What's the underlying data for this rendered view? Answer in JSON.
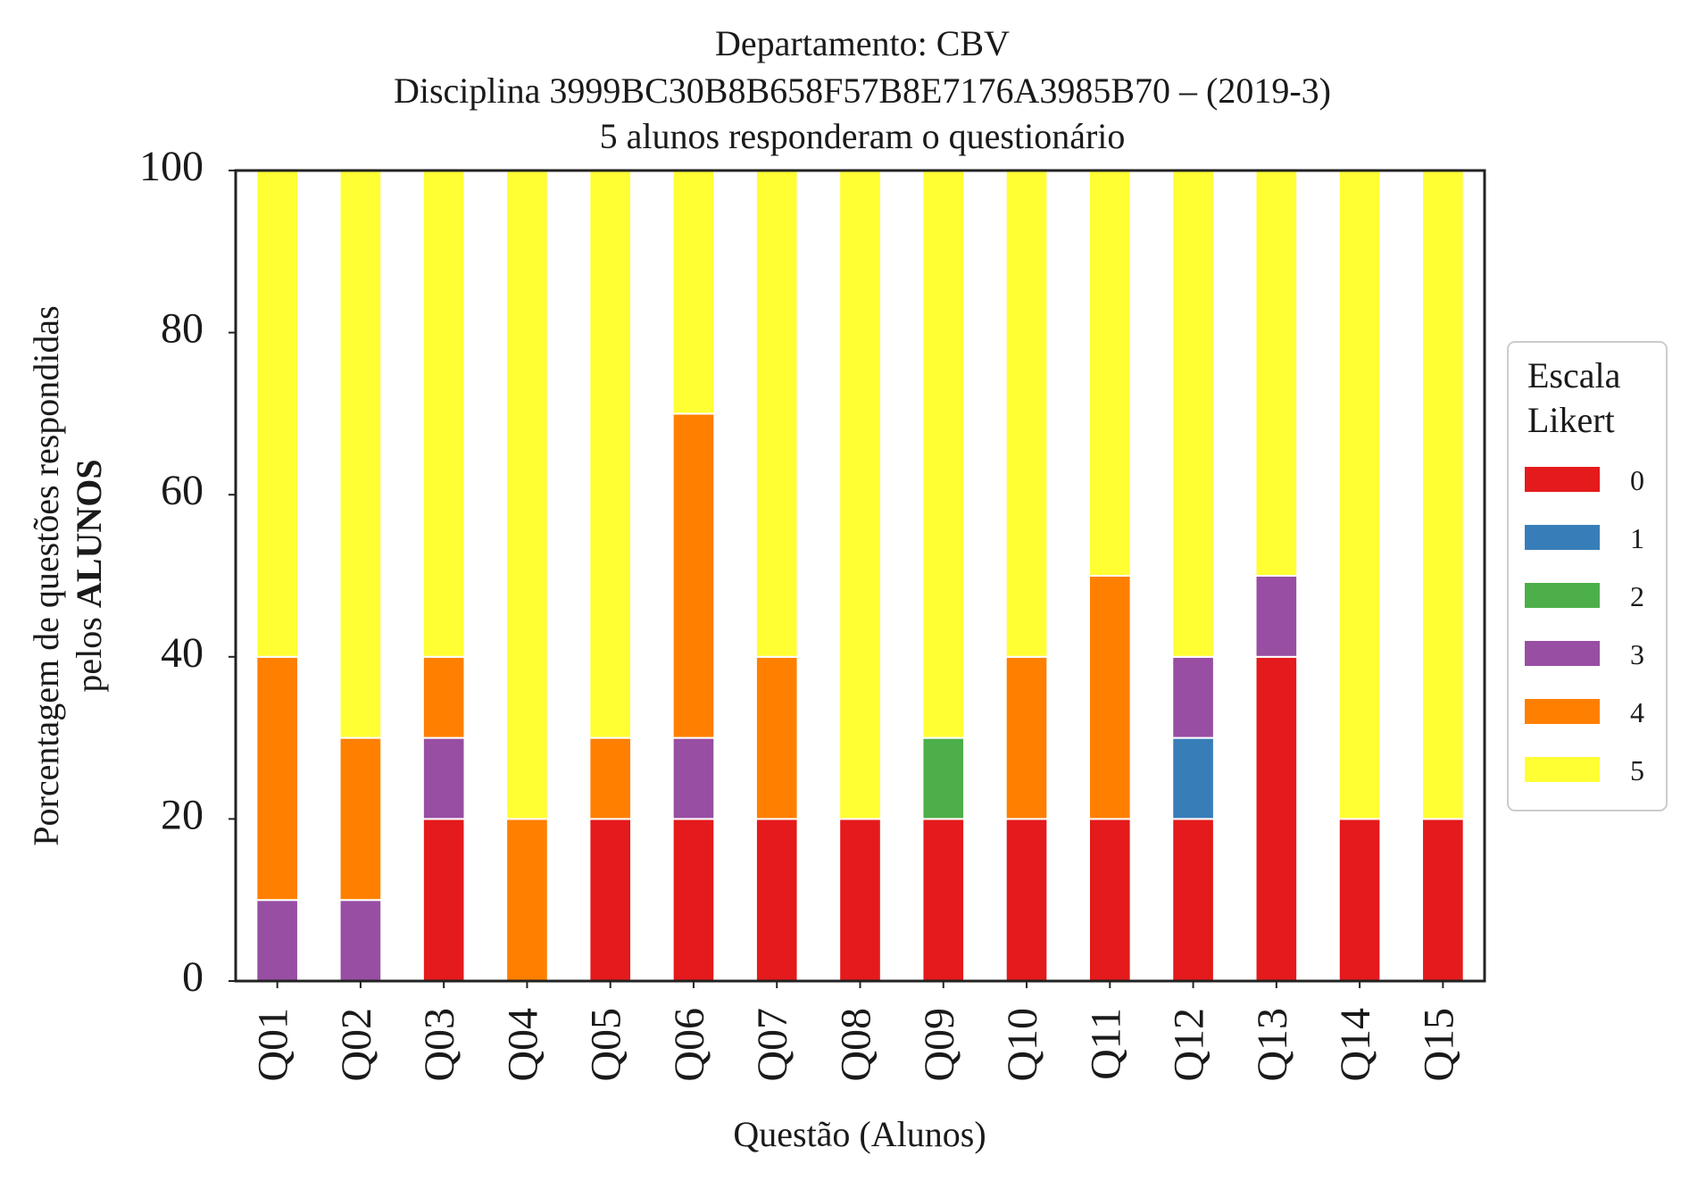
{
  "chart_data": {
    "type": "bar",
    "stacked": true,
    "title_lines": [
      "Departamento: CBV",
      "Disciplina 3999BC30B8B658F57B8E7176A3985B70 – (2019-3)",
      "5 alunos responderam o questionário"
    ],
    "xlabel": "Questão (Alunos)",
    "ylabel_line1": "Porcentagem de questões respondidas",
    "ylabel_line2_prefix": "pelos ",
    "ylabel_line2_bold": "ALUNOS",
    "ylim": [
      0,
      100
    ],
    "yticks": [
      "0",
      "20",
      "40",
      "60",
      "80",
      "100"
    ],
    "categories": [
      "Q01",
      "Q02",
      "Q03",
      "Q04",
      "Q05",
      "Q06",
      "Q07",
      "Q08",
      "Q09",
      "Q10",
      "Q11",
      "Q12",
      "Q13",
      "Q14",
      "Q15"
    ],
    "legend_title_lines": [
      "Escala",
      "Likert"
    ],
    "legend_position": "center-right",
    "grid": false,
    "series": [
      {
        "name": "0",
        "color": "#e41a1c",
        "values": [
          0,
          0,
          20,
          0,
          20,
          20,
          20,
          20,
          20,
          20,
          20,
          20,
          40,
          20,
          20
        ]
      },
      {
        "name": "1",
        "color": "#377eb8",
        "values": [
          0,
          0,
          0,
          0,
          0,
          0,
          0,
          0,
          0,
          0,
          0,
          10,
          0,
          0,
          0
        ]
      },
      {
        "name": "2",
        "color": "#4daf4a",
        "values": [
          0,
          0,
          0,
          0,
          0,
          0,
          0,
          0,
          10,
          0,
          0,
          0,
          0,
          0,
          0
        ]
      },
      {
        "name": "3",
        "color": "#984ea3",
        "values": [
          10,
          10,
          10,
          0,
          0,
          10,
          0,
          0,
          0,
          0,
          0,
          10,
          10,
          0,
          0
        ]
      },
      {
        "name": "4",
        "color": "#ff7f00",
        "values": [
          30,
          20,
          10,
          20,
          10,
          40,
          20,
          0,
          0,
          20,
          30,
          0,
          0,
          0,
          0
        ]
      },
      {
        "name": "5",
        "color": "#ffff33",
        "values": [
          60,
          70,
          60,
          80,
          70,
          30,
          60,
          80,
          70,
          60,
          50,
          60,
          50,
          80,
          80
        ]
      }
    ]
  }
}
